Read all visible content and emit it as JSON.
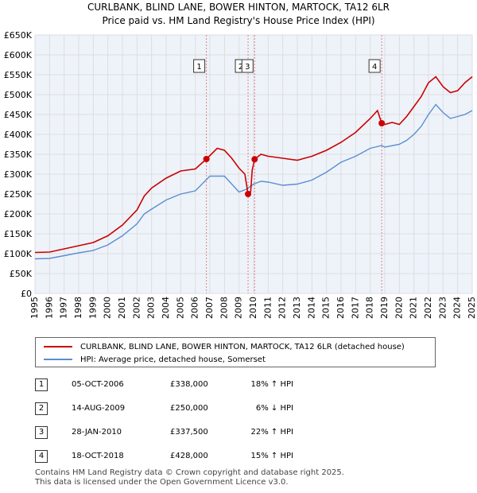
{
  "title_line1": "CURLBANK, BLIND LANE, BOWER HINTON, MARTOCK, TA12 6LR",
  "title_line2": "Price paid vs. HM Land Registry's House Price Index (HPI)",
  "legend": {
    "series1": "CURLBANK, BLIND LANE, BOWER HINTON, MARTOCK, TA12 6LR (detached house)",
    "series2": "HPI: Average price, detached house, Somerset"
  },
  "transactions": [
    {
      "num": "1",
      "date": "05-OCT-2006",
      "price": "£338,000",
      "hpi": "18% ↑ HPI"
    },
    {
      "num": "2",
      "date": "14-AUG-2009",
      "price": "£250,000",
      "hpi": "6% ↓ HPI"
    },
    {
      "num": "3",
      "date": "28-JAN-2010",
      "price": "£337,500",
      "hpi": "22% ↑ HPI"
    },
    {
      "num": "4",
      "date": "18-OCT-2018",
      "price": "£428,000",
      "hpi": "15% ↑ HPI"
    }
  ],
  "footer_line1": "Contains HM Land Registry data © Crown copyright and database right 2025.",
  "footer_line2": "This data is licensed under the Open Government Licence v3.0.",
  "colors": {
    "price": "#cc0000",
    "hpi": "#5b8fd0",
    "grid": "#dddddd",
    "plot_bg": "#eef3fa",
    "marker_line": "#e08080"
  },
  "chart_data": {
    "type": "line",
    "title": "Price paid vs. HM Land Registry's House Price Index (HPI)",
    "xlabel": "",
    "ylabel": "",
    "xlim": [
      1995,
      2025
    ],
    "ylim": [
      0,
      650000
    ],
    "y_ticks": [
      0,
      50000,
      100000,
      150000,
      200000,
      250000,
      300000,
      350000,
      400000,
      450000,
      500000,
      550000,
      600000,
      650000
    ],
    "y_tick_labels": [
      "£0",
      "£50K",
      "£100K",
      "£150K",
      "£200K",
      "£250K",
      "£300K",
      "£350K",
      "£400K",
      "£450K",
      "£500K",
      "£550K",
      "£600K",
      "£650K"
    ],
    "x_ticks": [
      1995,
      1996,
      1997,
      1998,
      1999,
      2000,
      2001,
      2002,
      2003,
      2004,
      2005,
      2006,
      2007,
      2008,
      2009,
      2010,
      2011,
      2012,
      2013,
      2014,
      2015,
      2016,
      2017,
      2018,
      2019,
      2020,
      2021,
      2022,
      2023,
      2024,
      2025
    ],
    "x_tick_labels": [
      "1995",
      "1996",
      "1997",
      "1998",
      "1999",
      "2000",
      "2001",
      "2002",
      "2003",
      "2004",
      "2005",
      "2006",
      "2007",
      "2008",
      "2009",
      "2010",
      "2011",
      "2012",
      "2013",
      "2014",
      "2015",
      "2016",
      "2017",
      "2018",
      "2019",
      "2020",
      "2021",
      "2022",
      "2023",
      "2024",
      "2025"
    ],
    "series": [
      {
        "name": "CURLBANK, BLIND LANE, BOWER HINTON, MARTOCK, TA12 6LR (detached house)",
        "x": [
          1995,
          1996,
          1997,
          1998,
          1999,
          2000,
          2001,
          2002,
          2002.5,
          2003,
          2004,
          2005,
          2006,
          2006.76,
          2007.5,
          2008,
          2008.5,
          2009,
          2009.4,
          2009.62,
          2009.8,
          2009.9,
          2010.07,
          2010.5,
          2011,
          2012,
          2013,
          2014,
          2015,
          2016,
          2017,
          2018,
          2018.5,
          2018.79,
          2019,
          2019.5,
          2020,
          2020.5,
          2021,
          2021.5,
          2022,
          2022.5,
          2023,
          2023.5,
          2024,
          2024.5,
          2025
        ],
        "y": [
          103000,
          104000,
          112000,
          120000,
          128000,
          145000,
          172000,
          210000,
          245000,
          265000,
          290000,
          308000,
          313000,
          338000,
          365000,
          360000,
          340000,
          315000,
          300000,
          250000,
          255000,
          310000,
          337500,
          350000,
          345000,
          340000,
          335000,
          345000,
          360000,
          380000,
          405000,
          440000,
          460000,
          428000,
          425000,
          430000,
          425000,
          445000,
          470000,
          495000,
          530000,
          545000,
          520000,
          505000,
          510000,
          530000,
          545000
        ]
      },
      {
        "name": "HPI: Average price, detached house, Somerset",
        "x": [
          1995,
          1996,
          1997,
          1998,
          1999,
          2000,
          2001,
          2002,
          2002.5,
          2003,
          2004,
          2005,
          2006,
          2007,
          2008,
          2008.5,
          2009,
          2009.5,
          2010,
          2010.5,
          2011,
          2012,
          2013,
          2014,
          2015,
          2016,
          2017,
          2018,
          2018.79,
          2019,
          2020,
          2020.5,
          2021,
          2021.5,
          2022,
          2022.5,
          2023,
          2023.5,
          2024,
          2024.5,
          2025
        ],
        "y": [
          87000,
          88000,
          95000,
          102000,
          108000,
          122000,
          145000,
          175000,
          200000,
          212000,
          235000,
          250000,
          258000,
          295000,
          295000,
          275000,
          255000,
          262000,
          275000,
          282000,
          280000,
          272000,
          275000,
          285000,
          305000,
          330000,
          345000,
          365000,
          372000,
          368000,
          375000,
          385000,
          400000,
          420000,
          450000,
          475000,
          455000,
          440000,
          445000,
          450000,
          460000
        ]
      }
    ],
    "annotations": [
      {
        "label": "1",
        "x": 2006.76,
        "y": 338000
      },
      {
        "label": "2",
        "x": 2009.62,
        "y": 250000
      },
      {
        "label": "3",
        "x": 2010.07,
        "y": 337500
      },
      {
        "label": "4",
        "x": 2018.79,
        "y": 428000
      }
    ]
  }
}
